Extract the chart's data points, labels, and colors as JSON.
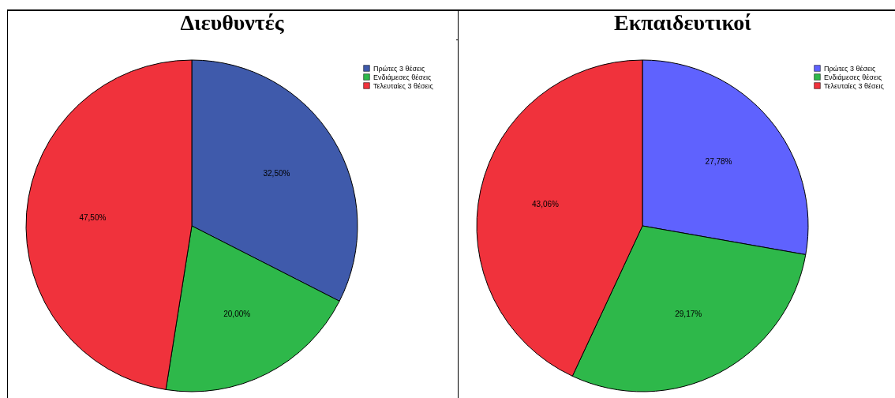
{
  "chart_data": [
    {
      "type": "pie",
      "title": "Διευθυντές",
      "categories": [
        "Πρώτες 3 θέσεις",
        "Ενδιάμεσες θέσεις",
        "Τελευταίες 3 θέσεις"
      ],
      "values": [
        32.5,
        20.0,
        47.5
      ],
      "colors": [
        "#3f5aab",
        "#2eb84a",
        "#f0323c"
      ],
      "value_labels": [
        "32,50%",
        "20,00%",
        "47,50%"
      ],
      "legend": "top right"
    },
    {
      "type": "pie",
      "title": "Εκπαιδευτικοί",
      "categories": [
        "Πρώτες 3 θέσεις",
        "Ενδιάμεσες θέσεις",
        "Τελευταίες 3 θέσεις"
      ],
      "values": [
        27.78,
        29.17,
        43.06
      ],
      "colors": [
        "#5f62fe",
        "#2eb84a",
        "#f0323c"
      ],
      "value_labels": [
        "27,78%",
        "29,17%",
        "43,06%"
      ],
      "legend": "top right"
    }
  ]
}
